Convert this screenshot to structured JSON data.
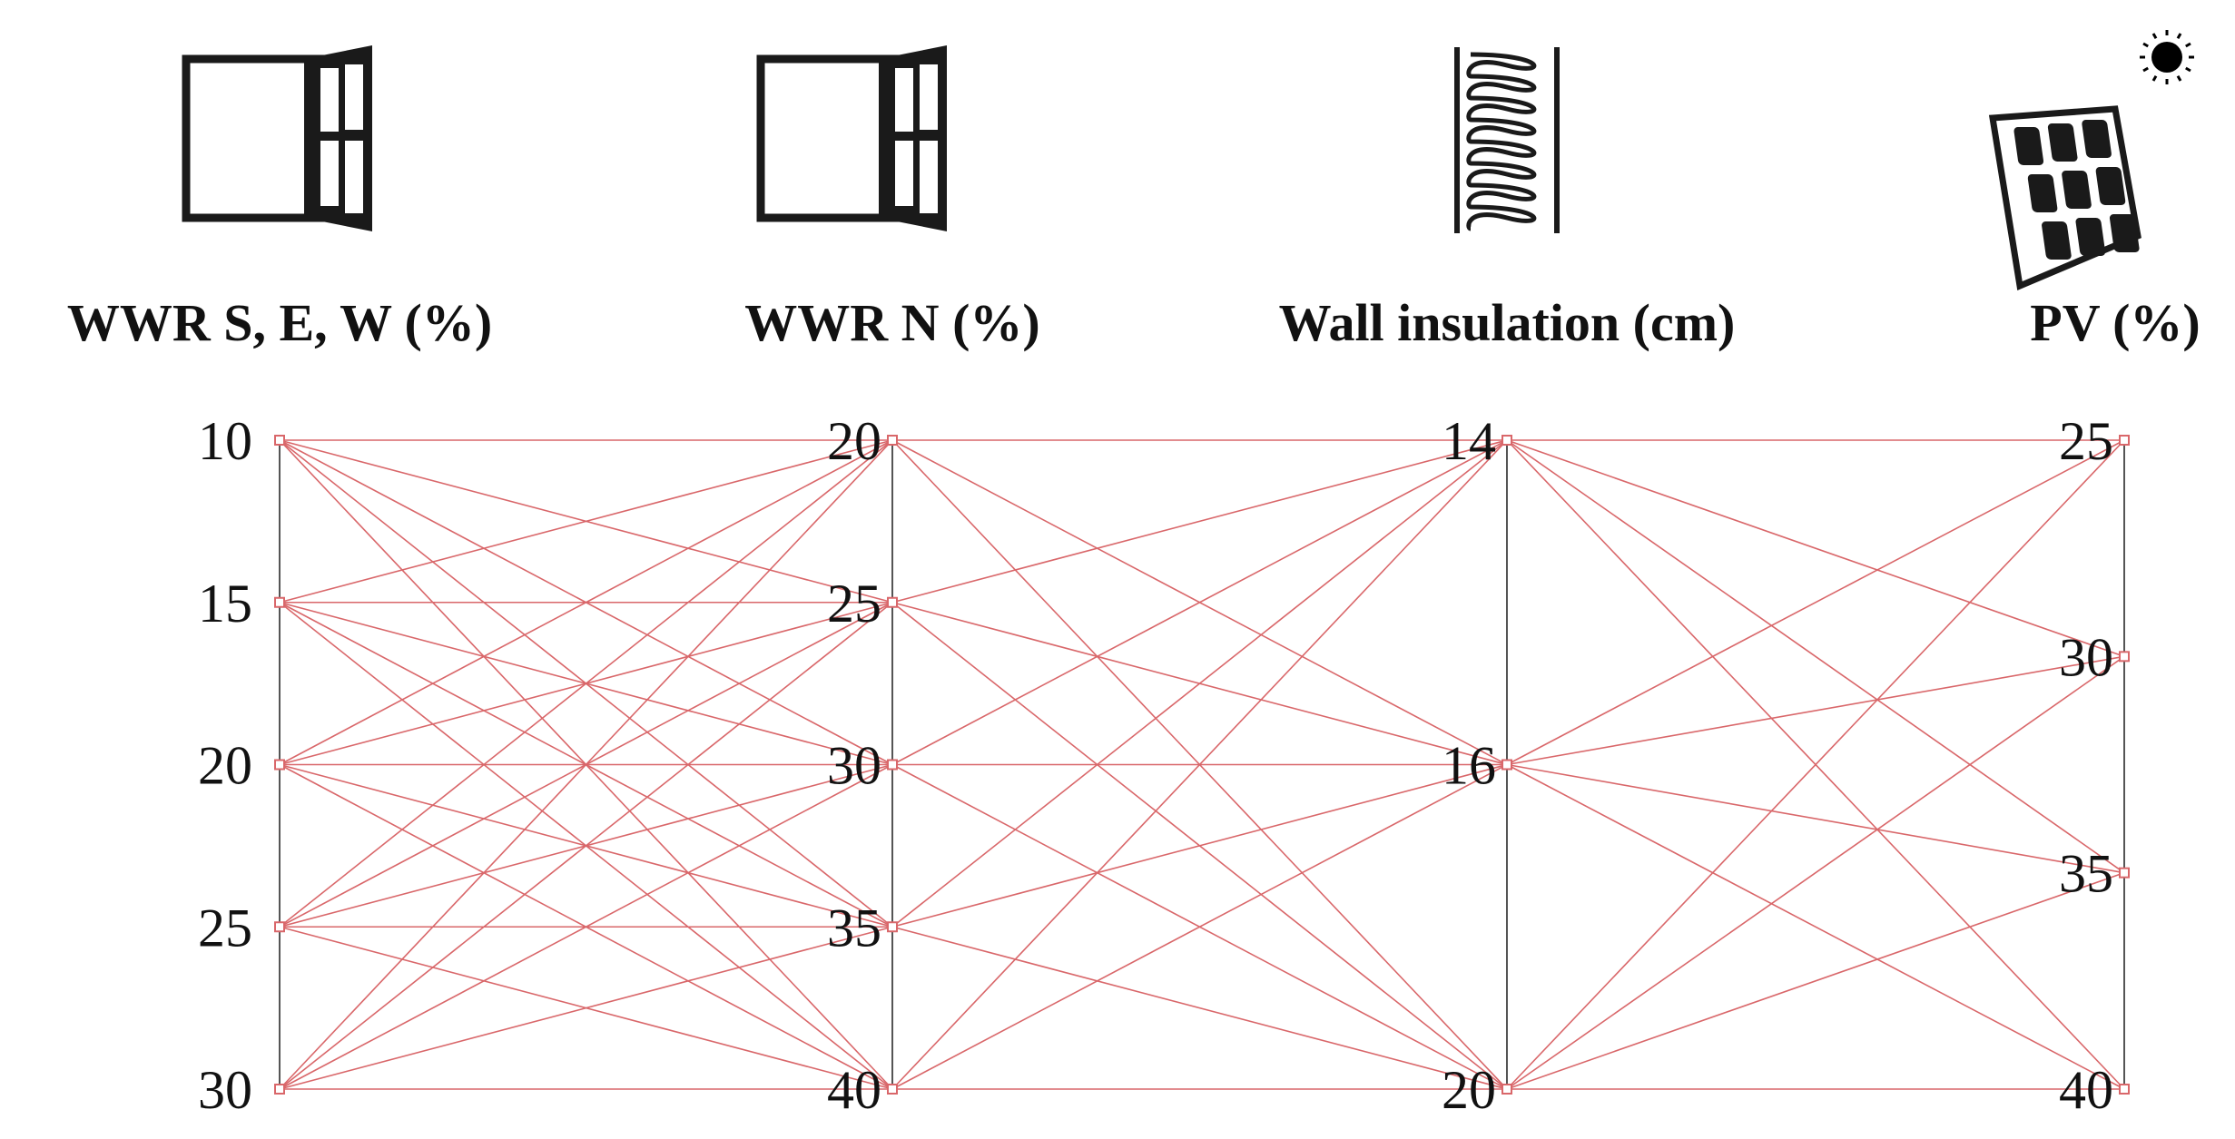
{
  "chart_data": {
    "type": "parallel-coordinates",
    "axes": [
      {
        "title": "WWR S, E, W (%)",
        "icon": "window-icon",
        "ticks": [
          "10",
          "15",
          "20",
          "25",
          "30"
        ]
      },
      {
        "title": "WWR N  (%)",
        "icon": "window-icon",
        "ticks": [
          "20",
          "25",
          "30",
          "35",
          "40"
        ]
      },
      {
        "title": "Wall insulation (cm)",
        "icon": "insulation-icon",
        "ticks": [
          "14",
          "16",
          "20"
        ]
      },
      {
        "title": "PV (%)",
        "icon": "pv-panel-icon",
        "ticks": [
          "25",
          "30",
          "35",
          "40"
        ]
      }
    ],
    "connections": "all value pairs between adjacent axes",
    "colors": {
      "lines": "#d9676a",
      "axes": "#555555",
      "text": "#111111"
    }
  }
}
